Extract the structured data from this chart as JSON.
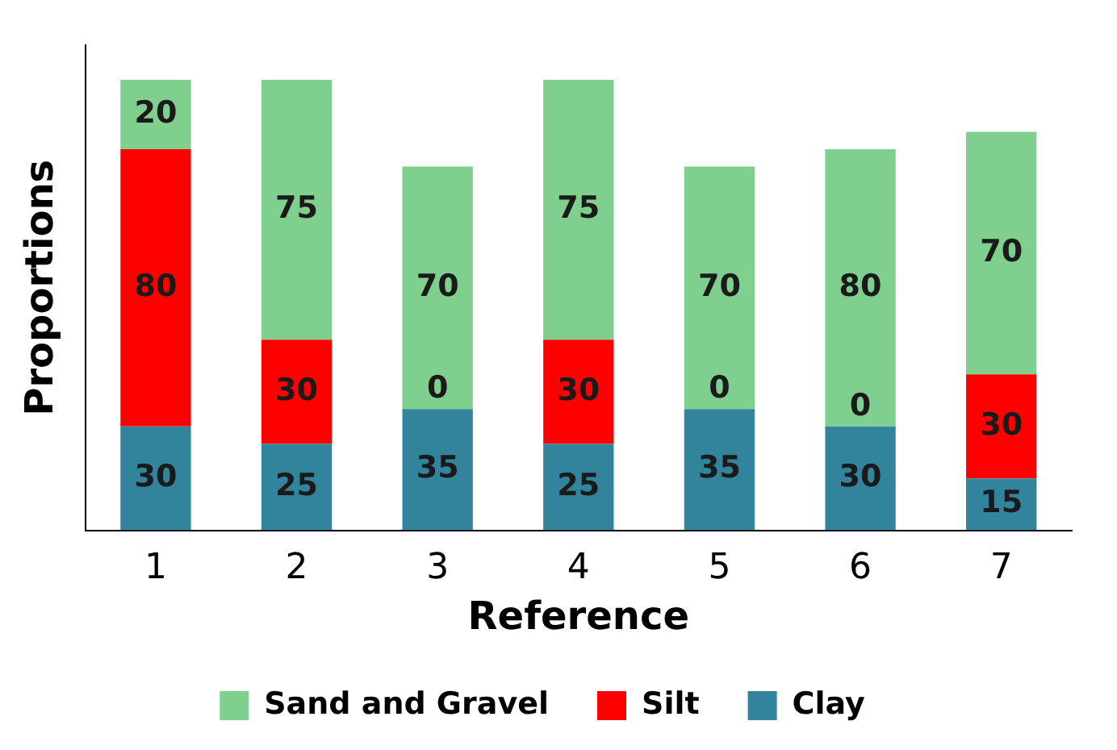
{
  "chart_data": {
    "type": "bar",
    "stacked": true,
    "xlabel": "Reference",
    "ylabel": "Proportions",
    "categories": [
      "1",
      "2",
      "3",
      "4",
      "5",
      "6",
      "7"
    ],
    "series": [
      {
        "name": "Clay",
        "color": "#31849b",
        "values": [
          30,
          25,
          35,
          25,
          35,
          30,
          15
        ]
      },
      {
        "name": "Silt",
        "color": "#ff0000",
        "values": [
          80,
          30,
          0,
          30,
          0,
          0,
          30
        ],
        "value_labels": [
          "80",
          "30",
          null,
          "30",
          null,
          null,
          "30"
        ]
      },
      {
        "name": "Sand and Gravel",
        "color": "#7fcf8f",
        "values": [
          20,
          75,
          70,
          75,
          70,
          80,
          70
        ]
      }
    ],
    "annotations": [
      {
        "text": "0",
        "x": "3",
        "y": 35
      },
      {
        "text": "0",
        "x": "5",
        "y": 35
      },
      {
        "text": "0",
        "x": "6",
        "y": 30
      }
    ],
    "data_labels": true,
    "legend": "bottom",
    "grid": false,
    "tick_labels": "x"
  }
}
